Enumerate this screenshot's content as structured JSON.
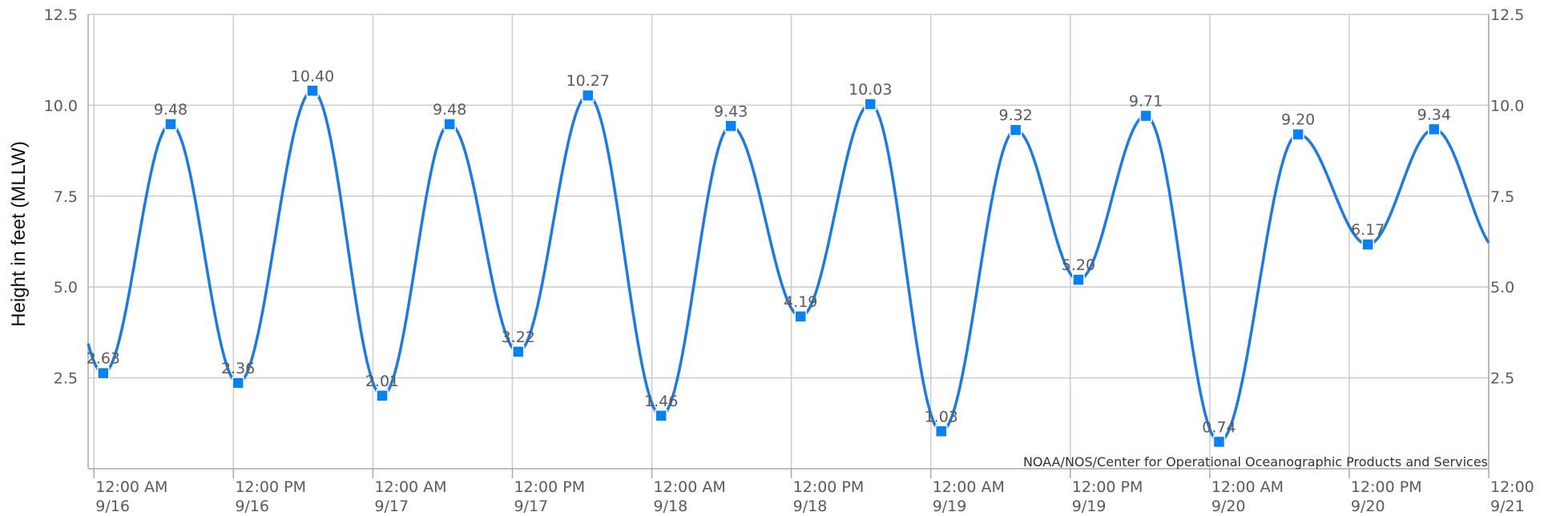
{
  "chart_data": {
    "type": "line",
    "title": "",
    "ylabel": "Height in feet (MLLW)",
    "xlabel": "",
    "ylim": [
      0,
      12.5
    ],
    "y_ticks": [
      "2.5",
      "5.0",
      "7.5",
      "10.0",
      "12.5"
    ],
    "y_tick_values": [
      2.5,
      5.0,
      7.5,
      10.0,
      12.5
    ],
    "x_range_hours": [
      -0.5,
      120
    ],
    "x_ticks": [
      {
        "hour": 0,
        "time": "12:00 AM",
        "date": "9/16"
      },
      {
        "hour": 12,
        "time": "12:00 PM",
        "date": "9/16"
      },
      {
        "hour": 24,
        "time": "12:00 AM",
        "date": "9/17"
      },
      {
        "hour": 36,
        "time": "12:00 PM",
        "date": "9/17"
      },
      {
        "hour": 48,
        "time": "12:00 AM",
        "date": "9/18"
      },
      {
        "hour": 60,
        "time": "12:00 PM",
        "date": "9/18"
      },
      {
        "hour": 72,
        "time": "12:00 AM",
        "date": "9/19"
      },
      {
        "hour": 84,
        "time": "12:00 PM",
        "date": "9/19"
      },
      {
        "hour": 96,
        "time": "12:00 AM",
        "date": "9/20"
      },
      {
        "hour": 108,
        "time": "12:00 PM",
        "date": "9/20"
      },
      {
        "hour": 120,
        "time": "12:00",
        "date": "9/21"
      }
    ],
    "grid": true,
    "series": [
      {
        "color": "#1f7ae0",
        "marker_color": "#0a80f5",
        "points": [
          {
            "x": 0.8,
            "y": 2.63,
            "label": "2.63"
          },
          {
            "x": 6.6,
            "y": 9.48,
            "label": "9.48"
          },
          {
            "x": 12.4,
            "y": 2.36,
            "label": "2.36"
          },
          {
            "x": 18.8,
            "y": 10.4,
            "label": "10.40"
          },
          {
            "x": 24.8,
            "y": 2.01,
            "label": "2.01"
          },
          {
            "x": 30.6,
            "y": 9.48,
            "label": "9.48"
          },
          {
            "x": 36.5,
            "y": 3.22,
            "label": "3.22"
          },
          {
            "x": 42.5,
            "y": 10.27,
            "label": "10.27"
          },
          {
            "x": 48.8,
            "y": 1.46,
            "label": "1.46"
          },
          {
            "x": 54.8,
            "y": 9.43,
            "label": "9.43"
          },
          {
            "x": 60.8,
            "y": 4.19,
            "label": "4.19"
          },
          {
            "x": 66.8,
            "y": 10.03,
            "label": "10.03"
          },
          {
            "x": 72.9,
            "y": 1.03,
            "label": "1.03"
          },
          {
            "x": 79.3,
            "y": 9.32,
            "label": "9.32"
          },
          {
            "x": 84.7,
            "y": 5.2,
            "label": "5.20"
          },
          {
            "x": 90.5,
            "y": 9.71,
            "label": "9.71"
          },
          {
            "x": 96.8,
            "y": 0.74,
            "label": "0.74"
          },
          {
            "x": 103.6,
            "y": 9.2,
            "label": "9.20"
          },
          {
            "x": 109.6,
            "y": 6.17,
            "label": "6.17"
          },
          {
            "x": 115.3,
            "y": 9.34,
            "label": "9.34"
          }
        ]
      }
    ],
    "credit": "NOAA/NOS/Center for Operational Oceanographic Products and Services"
  },
  "colors": {
    "grid": "#cccccc",
    "axis": "#aaaaaa"
  }
}
